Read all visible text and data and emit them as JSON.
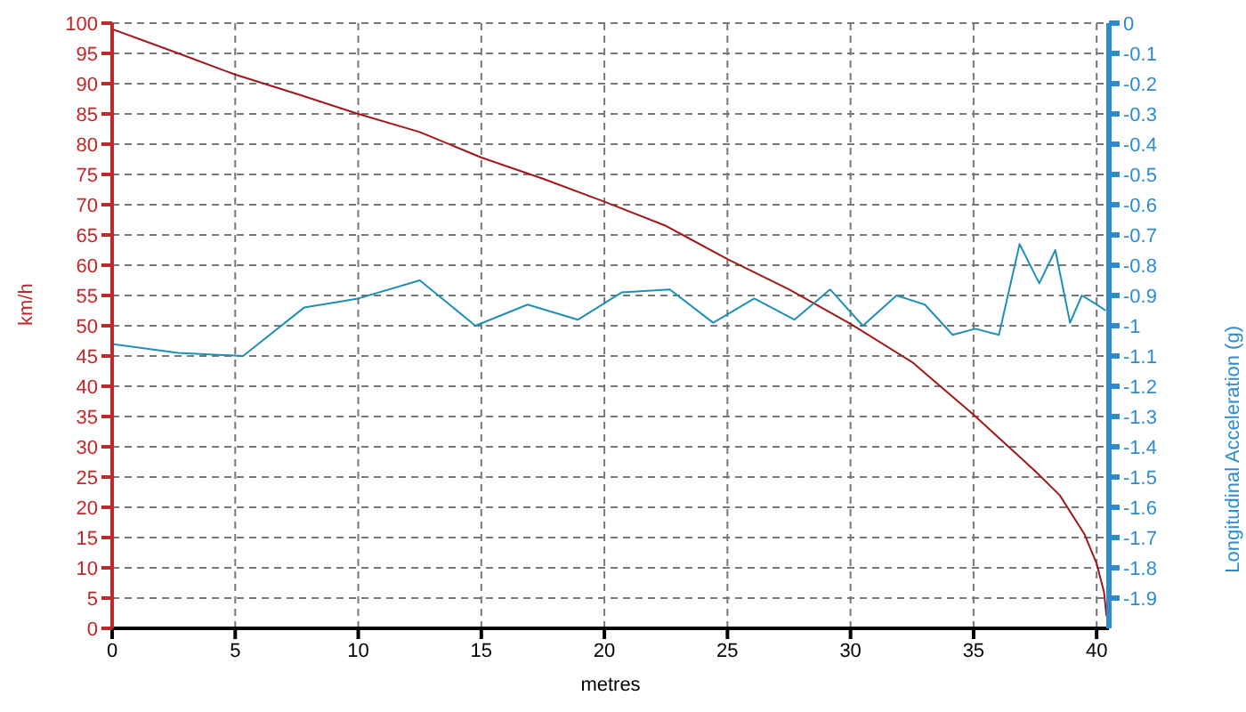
{
  "chart_data": {
    "type": "line",
    "xlabel": "metres",
    "ylabel": "km/h",
    "y2label": "Longitudinal Acceleration (g)",
    "xlim": [
      0,
      40.5
    ],
    "xticks": [
      0,
      5,
      10,
      15,
      20,
      25,
      30,
      35,
      40
    ],
    "ylim": [
      0,
      100
    ],
    "yticks": [
      0,
      5,
      10,
      15,
      20,
      25,
      30,
      35,
      40,
      45,
      50,
      55,
      60,
      65,
      70,
      75,
      80,
      85,
      90,
      95,
      100
    ],
    "y2lim": [
      -2,
      0
    ],
    "y2ticks": [
      0,
      -0.1,
      -0.2,
      -0.3,
      -0.4,
      -0.5,
      -0.6,
      -0.7,
      -0.8,
      -0.9,
      -1,
      -1.1,
      -1.2,
      -1.3,
      -1.4,
      -1.5,
      -1.6,
      -1.7,
      -1.8,
      -1.9
    ],
    "grid": true,
    "legend": false,
    "marker": "none",
    "line_style": "solid",
    "series": [
      {
        "color": "#a01818",
        "x": [
          0,
          2.5,
          5,
          7.5,
          10,
          12.5,
          15,
          17.5,
          20,
          22.5,
          25,
          27.5,
          30,
          32.5,
          35,
          37.5,
          38.5,
          39.5,
          40,
          40.3,
          40.4
        ],
        "values": [
          99,
          95.3,
          91.5,
          88.3,
          85,
          82,
          77.8,
          74.3,
          70.5,
          66.5,
          61,
          56,
          50.3,
          44,
          35.3,
          26,
          22,
          15.6,
          10.7,
          6,
          2
        ]
      },
      {
        "color": "#1f8fb5",
        "axis": "y2",
        "x": [
          0,
          2.67,
          5.32,
          7.8,
          10,
          12.5,
          14.76,
          16.88,
          18.93,
          20.7,
          22.66,
          24.42,
          26.09,
          27.72,
          29.17,
          30.5,
          31.87,
          33.02,
          34.15,
          35.07,
          36.03,
          36.87,
          37.67,
          38.32,
          38.92,
          39.4,
          40,
          40.37
        ],
        "values": [
          -1.06,
          -1.09,
          -1.1,
          -0.94,
          -0.91,
          -0.85,
          -1,
          -0.93,
          -0.98,
          -0.89,
          -0.88,
          -0.99,
          -0.91,
          -0.98,
          -0.88,
          -1,
          -0.9,
          -0.93,
          -1.03,
          -1.01,
          -1.03,
          -0.73,
          -0.86,
          -0.75,
          -0.99,
          -0.9,
          -0.93,
          -0.95
        ]
      }
    ]
  }
}
